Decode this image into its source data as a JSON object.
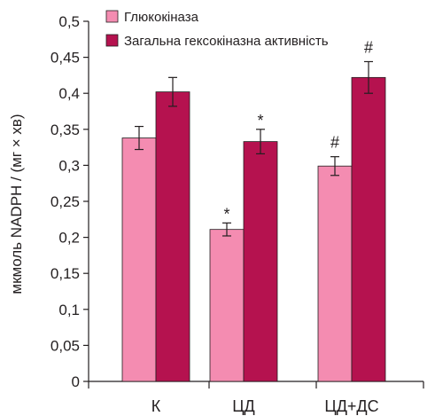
{
  "chart_data": {
    "type": "bar",
    "categories": [
      "К",
      "ЦД",
      "ЦД+ДС"
    ],
    "series": [
      {
        "name": "Глюкокіназа",
        "values": [
          0.338,
          0.211,
          0.299
        ],
        "errors": [
          0.016,
          0.009,
          0.013
        ],
        "color": "#f48cb1"
      },
      {
        "name": "Загальна гексокіназна активність",
        "values": [
          0.402,
          0.333,
          0.422
        ],
        "errors": [
          0.02,
          0.017,
          0.022
        ],
        "color": "#b5124f"
      }
    ],
    "annotations": [
      {
        "category": 1,
        "series": 0,
        "text": "*"
      },
      {
        "category": 1,
        "series": 1,
        "text": "*"
      },
      {
        "category": 2,
        "series": 0,
        "text": "#"
      },
      {
        "category": 2,
        "series": 1,
        "text": "#"
      }
    ],
    "ylabel": "мкмоль NADPH / (мг × хв)",
    "xlabel": "",
    "ylim": [
      0,
      0.5
    ],
    "yticks": [
      "0",
      "0,05",
      "0,1",
      "0,15",
      "0,2",
      "0,25",
      "0,3",
      "0,35",
      "0,4",
      "0,45",
      "0,5"
    ],
    "grid": false,
    "legend_position": "top"
  }
}
